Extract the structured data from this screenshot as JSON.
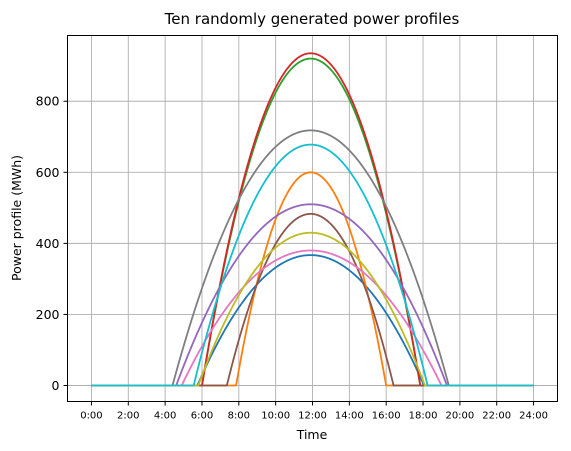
{
  "chart_data": {
    "type": "line",
    "title": "Ten randomly generated power profiles",
    "xlabel": "Time",
    "ylabel": "Power profile (MWh)",
    "xlim": [
      -1.3,
      25.3
    ],
    "ylim": [
      -45,
      985
    ],
    "grid": true,
    "x_ticks": [
      0,
      2,
      4,
      6,
      8,
      10,
      12,
      14,
      16,
      18,
      20,
      22,
      24
    ],
    "x_tick_labels": [
      "0:00",
      "2:00",
      "4:00",
      "6:00",
      "8:00",
      "10:00",
      "12:00",
      "14:00",
      "16:00",
      "18:00",
      "20:00",
      "22:00",
      "24:00"
    ],
    "y_ticks": [
      0,
      200,
      400,
      600,
      800
    ],
    "y_tick_labels": [
      "0",
      "200",
      "400",
      "600",
      "800"
    ],
    "x_range": [
      0,
      24
    ],
    "peak_hour": 11.9,
    "series": [
      {
        "color": "#1f77b4",
        "peak": 367,
        "start": 5.75,
        "end": 18.05
      },
      {
        "color": "#ff7f0e",
        "peak": 600,
        "start": 7.85,
        "end": 16.0
      },
      {
        "color": "#2ca02c",
        "peak": 920,
        "start": 6.0,
        "end": 17.85
      },
      {
        "color": "#d62728",
        "peak": 935,
        "start": 6.0,
        "end": 17.85
      },
      {
        "color": "#9467bd",
        "peak": 510,
        "start": 4.6,
        "end": 19.3
      },
      {
        "color": "#8c564b",
        "peak": 483,
        "start": 7.35,
        "end": 16.4
      },
      {
        "color": "#e377c2",
        "peak": 380,
        "start": 4.9,
        "end": 19.0
      },
      {
        "color": "#7f7f7f",
        "peak": 718,
        "start": 4.4,
        "end": 19.4
      },
      {
        "color": "#bcbd22",
        "peak": 430,
        "start": 5.8,
        "end": 18.1
      },
      {
        "color": "#17becf",
        "peak": 678,
        "start": 5.55,
        "end": 18.25
      }
    ]
  }
}
